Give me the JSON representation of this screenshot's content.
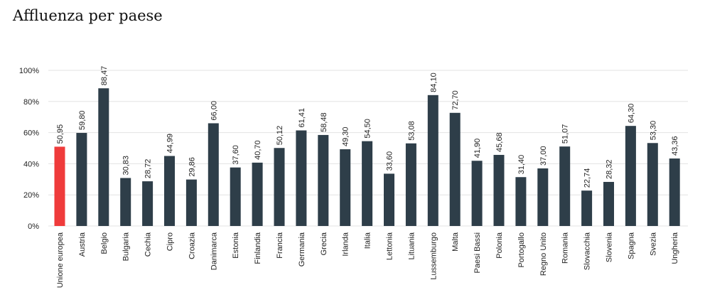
{
  "page": {
    "title": "Affluenza per paese"
  },
  "colors": {
    "highlight": "#ef3b3b",
    "bar": "#2e3e49",
    "grid": "#e3e3e3",
    "text": "#222222"
  },
  "chart_data": {
    "type": "bar",
    "title": "Affluenza per paese",
    "xlabel": "",
    "ylabel": "",
    "ylim": [
      0,
      100
    ],
    "yticks": [
      0,
      20,
      40,
      60,
      80,
      100
    ],
    "ytick_labels": [
      "0%",
      "20%",
      "40%",
      "60%",
      "80%",
      "100%"
    ],
    "grid": true,
    "categories": [
      "Unione europea",
      "Austria",
      "Belgio",
      "Bulgaria",
      "Cechia",
      "Cipro",
      "Croazia",
      "Danimarca",
      "Estonia",
      "Finlandia",
      "Francia",
      "Germania",
      "Grecia",
      "Irlanda",
      "Italia",
      "Lettonia",
      "Lituania",
      "Lussemburgo",
      "Malta",
      "Paesi Bassi",
      "Polonia",
      "Portogallo",
      "Regno Unito",
      "Romania",
      "Slovacchia",
      "Slovenia",
      "Spagna",
      "Svezia",
      "Ungheria"
    ],
    "values": [
      50.95,
      59.8,
      88.47,
      30.83,
      28.72,
      44.99,
      29.86,
      66.0,
      37.6,
      40.7,
      50.12,
      61.41,
      58.48,
      49.3,
      54.5,
      33.6,
      53.08,
      84.1,
      72.7,
      41.9,
      45.68,
      31.4,
      37.0,
      51.07,
      22.74,
      28.32,
      64.3,
      53.3,
      43.36
    ],
    "value_labels": [
      "50,95",
      "59,80",
      "88,47",
      "30,83",
      "28,72",
      "44,99",
      "29,86",
      "66,00",
      "37,60",
      "40,70",
      "50,12",
      "61,41",
      "58,48",
      "49,30",
      "54,50",
      "33,60",
      "53,08",
      "84,10",
      "72,70",
      "41,90",
      "45,68",
      "31,40",
      "37,00",
      "51,07",
      "22,74",
      "28,32",
      "64,30",
      "53,30",
      "43,36"
    ],
    "highlight_index": 0
  }
}
